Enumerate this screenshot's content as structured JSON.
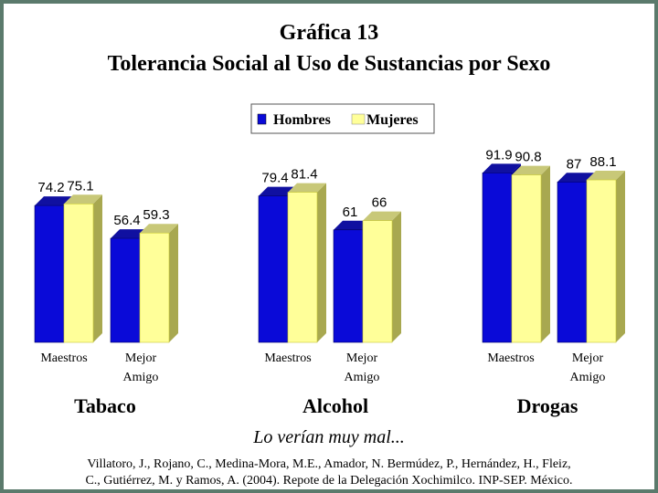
{
  "chart_data": {
    "type": "bar",
    "title": "Gráfica 13",
    "subtitle": "Tolerancia Social al Uso de Sustancias por Sexo",
    "categories": [
      "Maestros",
      "Mejor Amigo",
      "Maestros",
      "Mejor Amigo",
      "Maestros",
      "Mejor Amigo"
    ],
    "category_lines": [
      [
        "Maestros"
      ],
      [
        "Mejor",
        "Amigo"
      ],
      [
        "Maestros"
      ],
      [
        "Mejor",
        "Amigo"
      ],
      [
        "Maestros"
      ],
      [
        "Mejor",
        "Amigo"
      ]
    ],
    "groups": [
      {
        "name": "Tabaco",
        "categories": [
          0,
          1
        ]
      },
      {
        "name": "Alcohol",
        "categories": [
          2,
          3
        ]
      },
      {
        "name": "Drogas",
        "categories": [
          4,
          5
        ]
      }
    ],
    "series": [
      {
        "name": "Hombres",
        "color": "#0a0ad8",
        "values": [
          74.2,
          56.4,
          79.4,
          61,
          91.9,
          87
        ]
      },
      {
        "name": "Mujeres",
        "color": "#ffff99",
        "values": [
          75.1,
          59.3,
          81.4,
          66,
          90.8,
          88.1
        ]
      }
    ],
    "value_labels": [
      [
        "74.2",
        "56.4",
        "79.4",
        "61",
        "91.9",
        "87"
      ],
      [
        "75.1",
        "59.3",
        "81.4",
        "66",
        "90.8",
        "88.1"
      ]
    ],
    "ylim": [
      0,
      100
    ],
    "legend_position": "top-center",
    "grid": false,
    "caption": "Lo verían muy mal...",
    "source_lines": [
      "Villatoro, J., Rojano, C., Medina-Mora, M.E., Amador, N. Bermúdez, P., Hernández, H., Fleiz,",
      "C., Gutiérrez, M. y Ramos, A. (2004). Repote de la Delegación Xochimilco. INP-SEP. México."
    ]
  }
}
